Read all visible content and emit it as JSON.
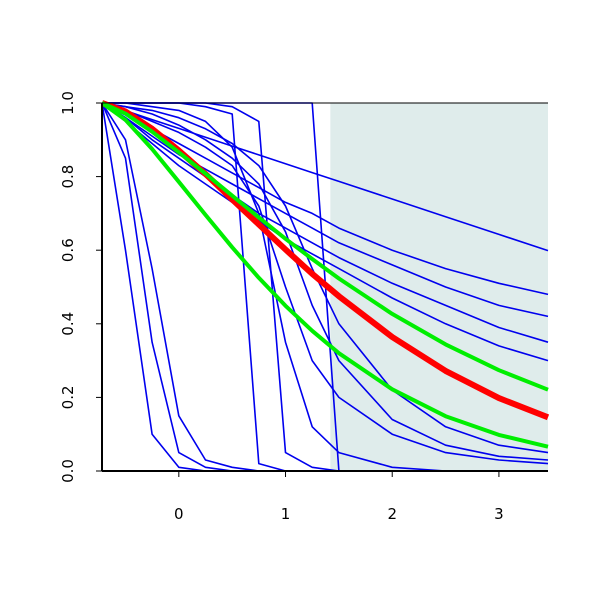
{
  "chart_data": {
    "type": "line",
    "x": [
      -0.72,
      -0.5,
      -0.25,
      0,
      0.25,
      0.5,
      0.75,
      1,
      1.25,
      1.5,
      2,
      2.5,
      3,
      3.46
    ],
    "xlim": [
      -0.72,
      3.46
    ],
    "ylim": [
      0,
      1
    ],
    "xticks": [
      0,
      1,
      2,
      3
    ],
    "yticks": [
      {
        "value": 0,
        "label": "0.0"
      },
      0.2,
      0.4,
      0.6,
      0.8,
      {
        "value": 1,
        "label": "1.0"
      }
    ],
    "shade": {
      "color": "#dfeceb",
      "xlim": [
        1.42,
        3.46
      ],
      "ylim": [
        0,
        1
      ]
    },
    "series": [
      {
        "color": "#0000ee",
        "values": [
          1,
          0.979,
          0.955,
          0.931,
          0.907,
          0.883,
          0.859,
          0.835,
          0.811,
          0.787,
          0.739,
          0.691,
          0.643,
          0.599
        ]
      },
      {
        "color": "#0000ee",
        "values": [
          1,
          0.97,
          0.93,
          0.89,
          0.85,
          0.81,
          0.77,
          0.73,
          0.7,
          0.66,
          0.6,
          0.55,
          0.51,
          0.48
        ]
      },
      {
        "color": "#0000ee",
        "values": [
          1,
          0.96,
          0.91,
          0.86,
          0.82,
          0.78,
          0.74,
          0.7,
          0.66,
          0.62,
          0.56,
          0.5,
          0.45,
          0.42
        ]
      },
      {
        "color": "#0000ee",
        "values": [
          1,
          0.96,
          0.9,
          0.85,
          0.8,
          0.75,
          0.7,
          0.66,
          0.62,
          0.58,
          0.51,
          0.45,
          0.39,
          0.35
        ]
      },
      {
        "color": "#0000ee",
        "values": [
          1,
          0.95,
          0.89,
          0.83,
          0.78,
          0.73,
          0.68,
          0.63,
          0.59,
          0.55,
          0.47,
          0.4,
          0.34,
          0.3
        ]
      },
      {
        "color": "#0000ee",
        "values": [
          1,
          0.6,
          0.1,
          0.01,
          0,
          0,
          0,
          0,
          0,
          0,
          0,
          0,
          0,
          0
        ]
      },
      {
        "color": "#0000ee",
        "values": [
          1,
          0.85,
          0.35,
          0.05,
          0.01,
          0,
          0,
          0,
          0,
          0,
          0,
          0,
          0,
          0
        ]
      },
      {
        "color": "#0000ee",
        "values": [
          1,
          0.9,
          0.55,
          0.15,
          0.03,
          0.01,
          0,
          0,
          0,
          0,
          0,
          0,
          0,
          0
        ]
      },
      {
        "color": "#0000ee",
        "values": [
          1,
          1,
          1,
          1,
          0.99,
          0.97,
          0.02,
          0,
          0,
          0,
          0,
          0,
          0,
          0
        ]
      },
      {
        "color": "#0000ee",
        "values": [
          1,
          1,
          1,
          1,
          1,
          0.99,
          0.95,
          0.05,
          0.01,
          0,
          0,
          0,
          0,
          0
        ]
      },
      {
        "color": "#0000ee",
        "values": [
          1,
          1,
          0.99,
          0.98,
          0.95,
          0.88,
          0.7,
          0.35,
          0.12,
          0.05,
          0.01,
          0,
          0,
          0
        ]
      },
      {
        "color": "#0000ee",
        "values": [
          1,
          1,
          1,
          1,
          1,
          1,
          1,
          1,
          1,
          0,
          0,
          0,
          0,
          0
        ]
      },
      {
        "color": "#0000ee",
        "values": [
          1,
          0.99,
          0.97,
          0.94,
          0.9,
          0.85,
          0.78,
          0.65,
          0.45,
          0.3,
          0.14,
          0.07,
          0.04,
          0.03
        ]
      },
      {
        "color": "#0000ee",
        "values": [
          1,
          0.99,
          0.98,
          0.96,
          0.93,
          0.89,
          0.83,
          0.72,
          0.55,
          0.4,
          0.22,
          0.12,
          0.07,
          0.05
        ]
      },
      {
        "color": "#0000ee",
        "values": [
          1,
          0.98,
          0.95,
          0.92,
          0.88,
          0.83,
          0.72,
          0.5,
          0.3,
          0.2,
          0.1,
          0.05,
          0.03,
          0.02
        ]
      },
      {
        "color": "#ff0000",
        "values": [
          1,
          0.977,
          0.93,
          0.871,
          0.807,
          0.738,
          0.67,
          0.602,
          0.536,
          0.475,
          0.364,
          0.272,
          0.198,
          0.146
        ]
      },
      {
        "color": "#00ee00",
        "values": [
          1,
          0.971,
          0.922,
          0.866,
          0.808,
          0.748,
          0.689,
          0.631,
          0.576,
          0.523,
          0.427,
          0.344,
          0.274,
          0.221
        ]
      },
      {
        "color": "#00ee00",
        "values": [
          1,
          0.954,
          0.875,
          0.786,
          0.696,
          0.608,
          0.525,
          0.449,
          0.381,
          0.32,
          0.222,
          0.149,
          0.098,
          0.066
        ]
      }
    ]
  }
}
